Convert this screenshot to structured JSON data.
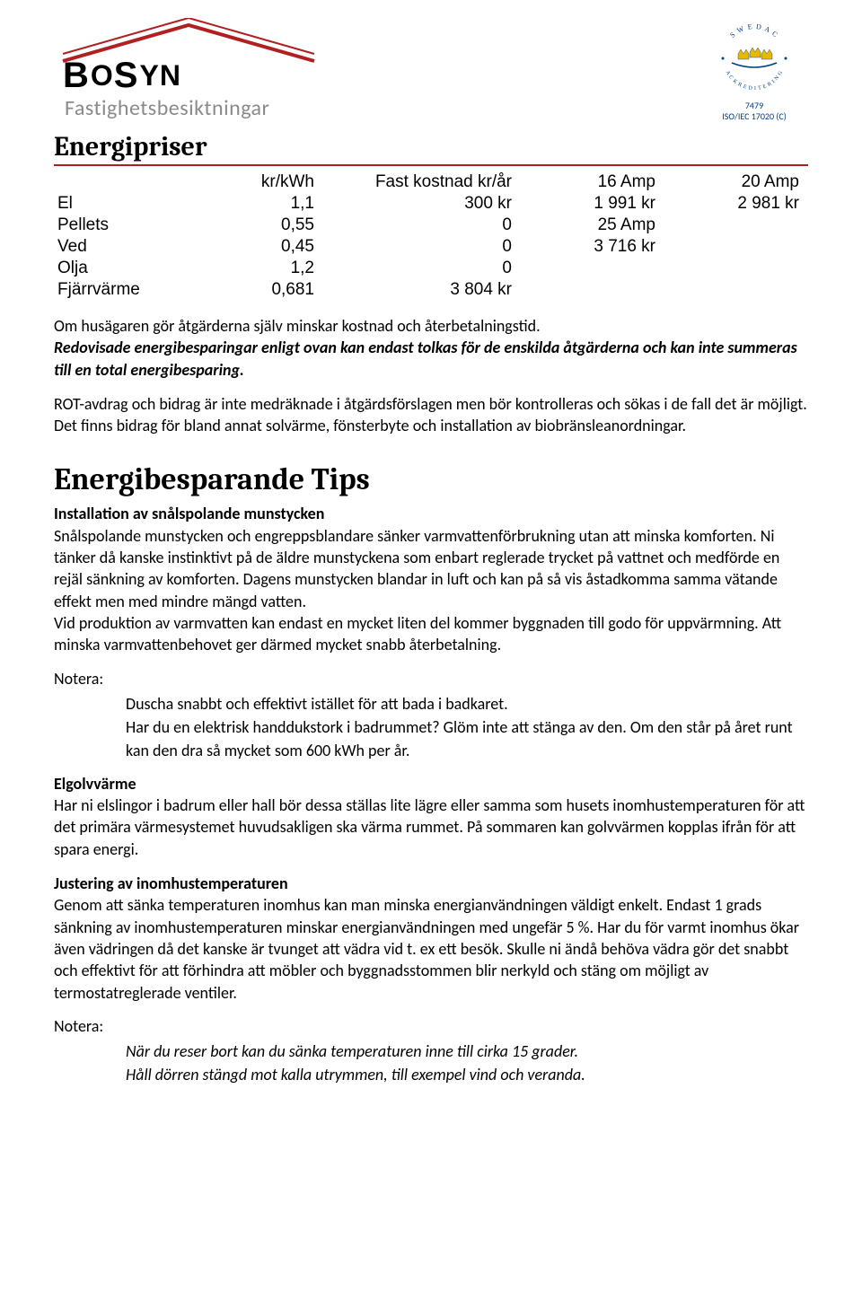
{
  "logo": {
    "name_html_parts": [
      "B",
      "O",
      "S",
      "YN"
    ],
    "sub": "Fastighetsbesiktningar",
    "roof_color": "#b02020",
    "text_color": "#000000",
    "sub_color": "#8a8a8a"
  },
  "accreditation": {
    "ring_text_top": "S W E D A C",
    "ring_text_bottom": "A C K R E D I T E R I N G",
    "number": "7479",
    "standard": "ISO/IEC 17020 (C)",
    "brand_blue": "#003f7f",
    "crown_gold": "#e6b800"
  },
  "section1": {
    "title": "Energipriser",
    "table": {
      "headers": [
        "",
        "kr/kWh",
        "Fast kostnad kr/år",
        "16 Amp",
        "20 Amp"
      ],
      "rows": [
        [
          "El",
          "1,1",
          "300 kr",
          "1 991 kr",
          "2 981 kr"
        ],
        [
          "Pellets",
          "0,55",
          "0",
          "25 Amp",
          ""
        ],
        [
          "Ved",
          "0,45",
          "0",
          "3 716 kr",
          ""
        ],
        [
          "Olja",
          "1,2",
          "0",
          "",
          ""
        ],
        [
          "Fjärrvärme",
          "0,681",
          "3 804 kr",
          "",
          ""
        ]
      ]
    },
    "para1_plain": "Om husägaren gör åtgärderna själv minskar kostnad och återbetalningstid.",
    "para1_italic": "Redovisade energibesparingar enligt ovan kan endast tolkas för de enskilda åtgärderna och kan inte summeras till en total energibesparing.",
    "para2": "ROT-avdrag och bidrag är inte medräknade i åtgärdsförslagen men bör kontrolleras och sökas i de fall det är möjligt.",
    "para3": "Det finns bidrag för bland annat solvärme, fönsterbyte och installation av biobränsleanordningar."
  },
  "section2": {
    "title": "Energibesparande Tips",
    "tip1": {
      "heading": "Installation av snålspolande munstycken",
      "body": "Snålspolande munstycken och engreppsblandare sänker varmvattenförbrukning utan att minska komforten. Ni tänker då kanske instinktivt på de äldre munstyckena som enbart reglerade trycket på vattnet och medförde en rejäl sänkning av komforten. Dagens munstycken blandar in luft och kan på så vis åstadkomma samma vätande effekt men med mindre mängd vatten.",
      "body2": "Vid produktion av varmvatten kan endast en mycket liten del kommer byggnaden till godo för uppvärmning. Att minska varmvattenbehovet ger därmed mycket snabb återbetalning."
    },
    "note_label": "Notera:",
    "tip1_notes": [
      "Duscha snabbt och effektivt istället för att bada i badkaret.",
      "Har du en elektrisk handdukstork i badrummet? Glöm inte att stänga av den. Om den står på året runt kan den dra så mycket som 600 kWh per år."
    ],
    "tip2": {
      "heading": "Elgolvvärme",
      "body": "Har ni elslingor i badrum eller hall bör dessa ställas lite lägre eller samma som husets inomhustemperaturen för att det primära värmesystemet huvudsakligen ska värma rummet. På sommaren kan golvvärmen kopplas ifrån för att spara energi."
    },
    "tip3": {
      "heading": "Justering av inomhustemperaturen",
      "body": "Genom att sänka temperaturen inomhus kan man minska energianvändningen väldigt enkelt. Endast 1 grads sänkning av inomhustemperaturen minskar energianvändningen med ungefär 5 %.  Har du för varmt inomhus ökar även vädringen då det kanske är tvunget att vädra vid t. ex ett besök. Skulle ni ändå behöva vädra gör det snabbt och effektivt för att förhindra att möbler och byggnadsstommen blir nerkyld och stäng om möjligt av termostatreglerade ventiler."
    },
    "tip3_notes": [
      "När du reser bort kan du sänka temperaturen inne till cirka 15 grader.",
      "Håll dörren stängd mot kalla utrymmen, till exempel vind och veranda."
    ]
  }
}
